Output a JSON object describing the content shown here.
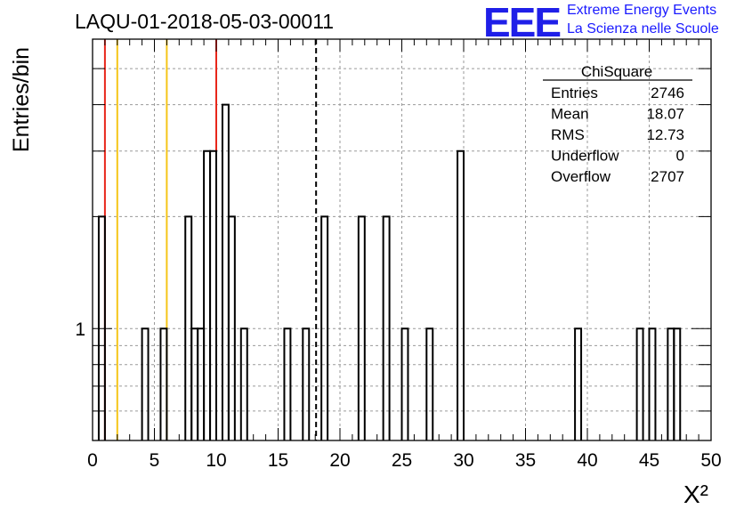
{
  "header": {
    "title": "LAQU-01-2018-05-03-00011",
    "logo_text": "EEE",
    "logo_line1": "Extreme Energy Events",
    "logo_line2": "La Scienza nelle Scuole"
  },
  "stats_box": {
    "title": "ChiSquare",
    "rows": [
      {
        "label": "Entries",
        "value": "2746"
      },
      {
        "label": "Mean",
        "value": "18.07"
      },
      {
        "label": "RMS",
        "value": "12.73"
      },
      {
        "label": "Underflow",
        "value": "0"
      },
      {
        "label": "Overflow",
        "value": "2707"
      }
    ]
  },
  "chart_data": {
    "type": "bar",
    "title": "LAQU-01-2018-05-03-00011",
    "xlabel": "X²",
    "ylabel": "Entries/bin",
    "xlim": [
      0,
      50
    ],
    "ylim": [
      0.5,
      6
    ],
    "yscale": "log",
    "grid": true,
    "bin_width": 0.5,
    "xticks": [
      "0",
      "5",
      "10",
      "15",
      "20",
      "25",
      "30",
      "35",
      "40",
      "45",
      "50"
    ],
    "yticks": [
      "1"
    ],
    "bins": [
      {
        "x": 0.5,
        "value": 2
      },
      {
        "x": 4.0,
        "value": 1
      },
      {
        "x": 5.5,
        "value": 1
      },
      {
        "x": 7.5,
        "value": 2
      },
      {
        "x": 8.0,
        "value": 1
      },
      {
        "x": 8.5,
        "value": 1
      },
      {
        "x": 9.0,
        "value": 3
      },
      {
        "x": 9.5,
        "value": 3
      },
      {
        "x": 10.5,
        "value": 4
      },
      {
        "x": 11.0,
        "value": 2
      },
      {
        "x": 12.0,
        "value": 1
      },
      {
        "x": 15.5,
        "value": 1
      },
      {
        "x": 17.0,
        "value": 1
      },
      {
        "x": 18.5,
        "value": 2
      },
      {
        "x": 21.5,
        "value": 2
      },
      {
        "x": 23.5,
        "value": 2
      },
      {
        "x": 25.0,
        "value": 1
      },
      {
        "x": 27.0,
        "value": 1
      },
      {
        "x": 29.5,
        "value": 3
      },
      {
        "x": 39.0,
        "value": 1
      },
      {
        "x": 44.0,
        "value": 1
      },
      {
        "x": 45.0,
        "value": 1
      },
      {
        "x": 46.5,
        "value": 1
      },
      {
        "x": 47.0,
        "value": 1
      }
    ],
    "reference_lines": [
      {
        "x": 1,
        "color": "#e8261a",
        "style": "solid"
      },
      {
        "x": 2,
        "color": "#f5c518",
        "style": "solid"
      },
      {
        "x": 6,
        "color": "#f5c518",
        "style": "solid"
      },
      {
        "x": 10,
        "color": "#e8261a",
        "style": "solid"
      },
      {
        "x": 18.07,
        "color": "#000000",
        "style": "dashed"
      }
    ]
  }
}
